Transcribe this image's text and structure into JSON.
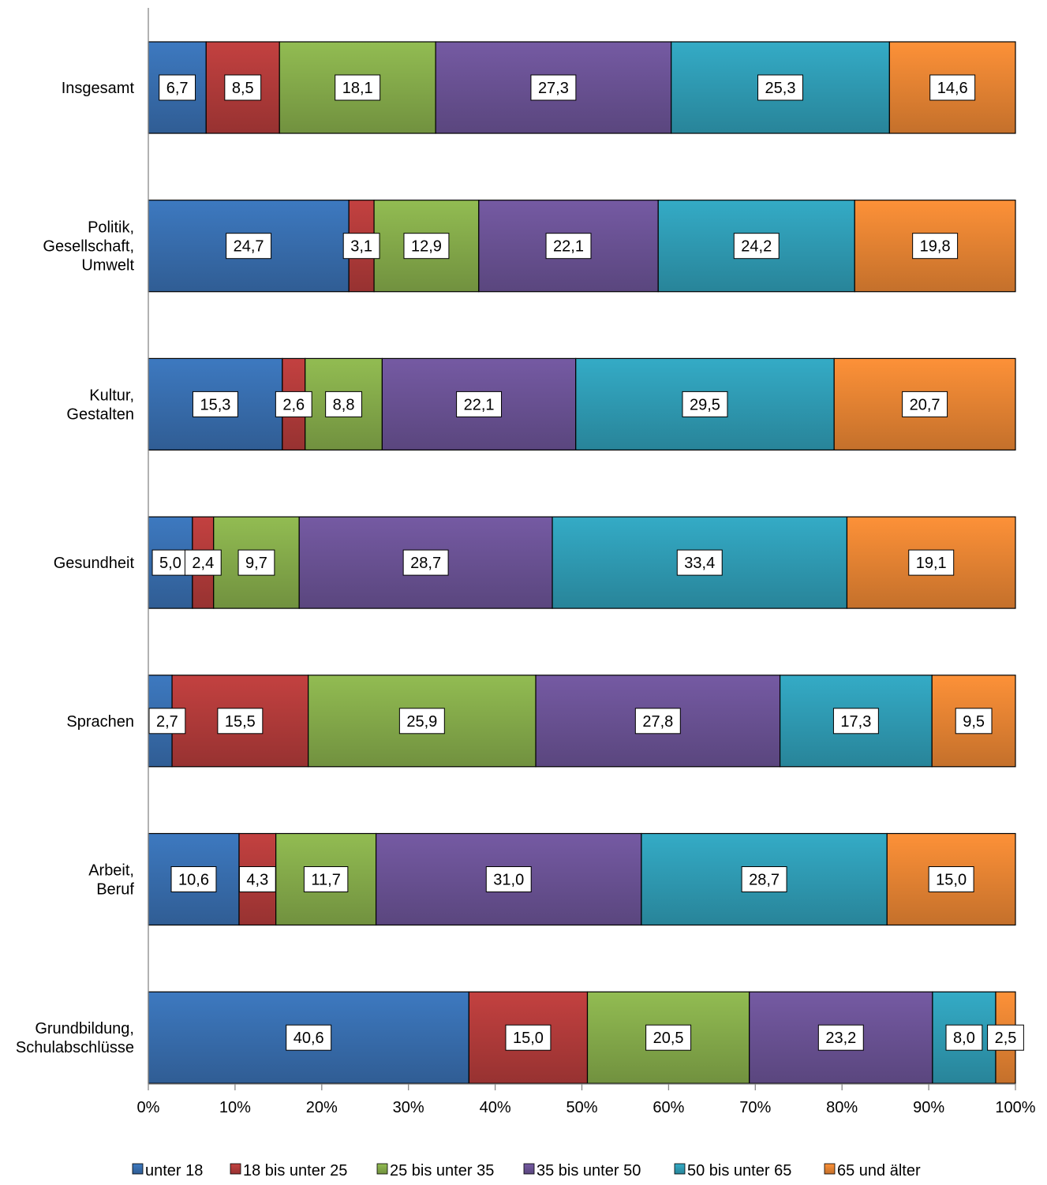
{
  "chart_data": {
    "type": "bar",
    "orientation": "horizontal",
    "stacked": "percent",
    "categories": [
      [
        "Insgesamt"
      ],
      [
        "Politik,",
        "Gesellschaft,",
        "Umwelt"
      ],
      [
        "Kultur,",
        "Gestalten"
      ],
      [
        "Gesundheit"
      ],
      [
        "Sprachen"
      ],
      [
        "Arbeit,",
        "Beruf"
      ],
      [
        "Grundbildung,",
        "Schulabschlüsse"
      ]
    ],
    "series": [
      {
        "name": "unter 18",
        "color": "#3a72b5",
        "values": [
          6.7,
          24.7,
          15.3,
          5.0,
          2.7,
          10.6,
          40.6
        ],
        "labels": [
          "6,7",
          "24,7",
          "15,3",
          "5,0",
          "2,7",
          "10,6",
          "40,6"
        ]
      },
      {
        "name": "18 bis unter 25",
        "color": "#b83d3c",
        "values": [
          8.5,
          3.1,
          2.6,
          2.4,
          15.5,
          4.3,
          15.0
        ],
        "labels": [
          "8,5",
          "3,1",
          "2,6",
          "2,4",
          "15,5",
          "4,3",
          "15,0"
        ]
      },
      {
        "name": "25 bis unter 35",
        "color": "#8ab14d",
        "values": [
          18.1,
          12.9,
          8.8,
          9.7,
          25.9,
          11.7,
          20.5
        ],
        "labels": [
          "18,1",
          "12,9",
          "8,8",
          "9,7",
          "25,9",
          "11,7",
          "20,5"
        ]
      },
      {
        "name": "35 bis unter 50",
        "color": "#6e559a",
        "values": [
          27.3,
          22.1,
          22.1,
          28.7,
          27.8,
          31.0,
          23.2
        ],
        "labels": [
          "27,3",
          "22,1",
          "22,1",
          "28,7",
          "27,8",
          "31,0",
          "23,2"
        ]
      },
      {
        "name": "50 bis unter 65",
        "color": "#31a1bb",
        "values": [
          25.3,
          24.2,
          29.5,
          33.4,
          17.3,
          28.7,
          8.0
        ],
        "labels": [
          "25,3",
          "24,2",
          "29,5",
          "33,4",
          "17,3",
          "28,7",
          "8,0"
        ]
      },
      {
        "name": "65 und älter",
        "color": "#ef8935",
        "values": [
          14.6,
          19.8,
          20.7,
          19.1,
          9.5,
          15.0,
          2.5
        ],
        "labels": [
          "14,6",
          "19,8",
          "20,7",
          "19,1",
          "9,5",
          "15,0",
          "2,5"
        ]
      }
    ],
    "xlim": [
      0,
      100
    ],
    "xticks": [
      "0%",
      "10%",
      "20%",
      "30%",
      "40%",
      "50%",
      "60%",
      "70%",
      "80%",
      "90%",
      "100%"
    ],
    "legend_position": "bottom",
    "grid": false
  }
}
